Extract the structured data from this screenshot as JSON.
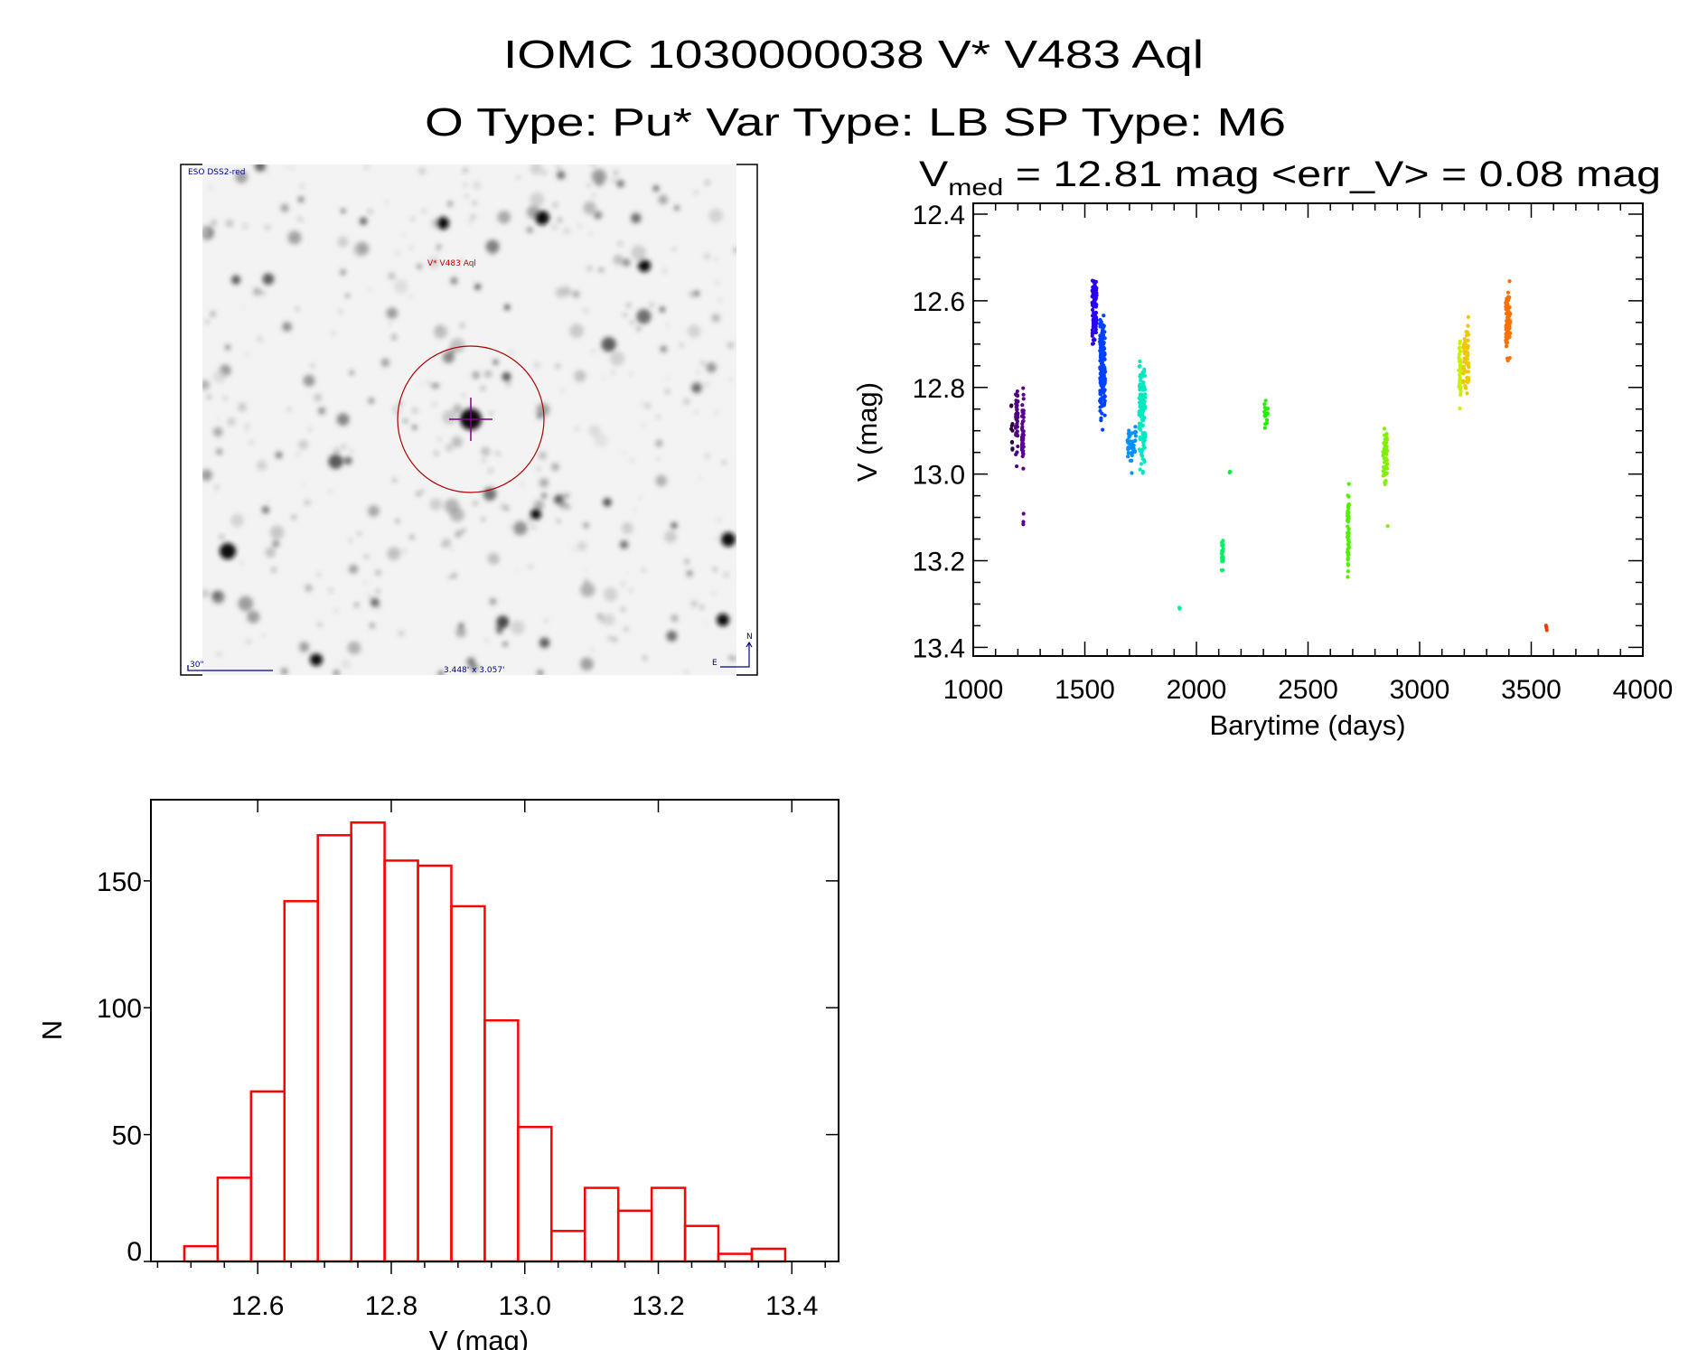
{
  "header": {
    "title": "IOMC 1030000038    V* V483 Aql",
    "subtitle": "O Type: Pu*   Var Type: LB   SP Type: M6"
  },
  "finder_image": {
    "survey_label": "ESO DSS2-red",
    "target_label": "V* V483 Aql",
    "scale_label": "30\"",
    "field_size_label": "3.448' x 3.057'",
    "north_label": "N",
    "east_label": "E",
    "label_color": "#00008b",
    "target_color": "#c00000"
  },
  "chart_data": [
    {
      "type": "scatter",
      "title_v": "V",
      "title_sub": "med",
      "title_rest": " = 12.81 mag <err_V> = 0.08 mag",
      "xlabel": "Barytime (days)",
      "ylabel": "V (mag)",
      "xlim": [
        1000,
        4000
      ],
      "ylim": [
        12.375,
        13.42
      ],
      "y_inverted": true,
      "xticks": [
        1000,
        1500,
        2000,
        2500,
        3000,
        3500,
        4000
      ],
      "xtick_labels": [
        "1000",
        "1500",
        "2000",
        "2500",
        "3000",
        "3500",
        "4000"
      ],
      "yticks": [
        12.4,
        12.6,
        12.8,
        13.0,
        13.2,
        13.4
      ],
      "ytick_labels": [
        "12.4",
        "12.6",
        "12.8",
        "13.0",
        "13.2",
        "13.4"
      ],
      "clusters": [
        {
          "t": [
            1170,
            1178
          ],
          "v": [
            12.8,
            12.97
          ],
          "n": 10,
          "color": "#300040"
        },
        {
          "t": [
            1190,
            1200
          ],
          "v": [
            12.74,
            13.0
          ],
          "n": 40,
          "color": "#500080"
        },
        {
          "t": [
            1218,
            1226
          ],
          "v": [
            12.75,
            13.02
          ],
          "n": 45,
          "color": "#580090"
        },
        {
          "t": [
            1223,
            1226
          ],
          "v": [
            13.08,
            13.13
          ],
          "n": 3,
          "color": "#580090"
        },
        {
          "t": [
            1533,
            1553
          ],
          "v": [
            12.49,
            12.73
          ],
          "n": 90,
          "color": "#2a00f0"
        },
        {
          "t": [
            1567,
            1591
          ],
          "v": [
            12.58,
            12.92
          ],
          "n": 180,
          "color": "#0040ff"
        },
        {
          "t": [
            1690,
            1729
          ],
          "v": [
            12.85,
            13.01
          ],
          "n": 40,
          "color": "#0090ff"
        },
        {
          "t": [
            1743,
            1771
          ],
          "v": [
            12.69,
            13.04
          ],
          "n": 120,
          "color": "#00e8c0"
        },
        {
          "t": [
            1922,
            1926
          ],
          "v": [
            13.305,
            13.315
          ],
          "n": 3,
          "color": "#00f0a0"
        },
        {
          "t": [
            2113,
            2120
          ],
          "v": [
            13.13,
            13.26
          ],
          "n": 25,
          "color": "#00f060"
        },
        {
          "t": [
            2148,
            2152
          ],
          "v": [
            12.99,
            13.0
          ],
          "n": 4,
          "color": "#00f040"
        },
        {
          "t": [
            2304,
            2320
          ],
          "v": [
            12.8,
            12.93
          ],
          "n": 15,
          "color": "#20f000"
        },
        {
          "t": [
            2676,
            2684
          ],
          "v": [
            12.98,
            13.28
          ],
          "n": 60,
          "color": "#50f000"
        },
        {
          "t": [
            2836,
            2856
          ],
          "v": [
            12.86,
            13.06
          ],
          "n": 50,
          "color": "#80f000"
        },
        {
          "t": [
            2855,
            2857
          ],
          "v": [
            13.12,
            13.12
          ],
          "n": 1,
          "color": "#80f000"
        },
        {
          "t": [
            3175,
            3185
          ],
          "v": [
            12.64,
            12.88
          ],
          "n": 40,
          "color": "#c8f000"
        },
        {
          "t": [
            3195,
            3222
          ],
          "v": [
            12.61,
            12.86
          ],
          "n": 60,
          "color": "#f0c800"
        },
        {
          "t": [
            3386,
            3406
          ],
          "v": [
            12.54,
            12.76
          ],
          "n": 80,
          "color": "#ff7000"
        },
        {
          "t": [
            3566,
            3570
          ],
          "v": [
            13.34,
            13.375
          ],
          "n": 4,
          "color": "#ff3800"
        }
      ]
    },
    {
      "type": "bar",
      "xlabel": "V (mag)",
      "ylabel": "N",
      "xlim": [
        12.44,
        13.47
      ],
      "ylim": [
        0,
        182
      ],
      "bin_start": 12.49,
      "bin_width": 0.05,
      "counts": [
        6,
        33,
        67,
        142,
        168,
        173,
        158,
        156,
        140,
        95,
        53,
        12,
        29,
        20,
        29,
        14,
        3,
        5
      ],
      "bar_color": "#ff0000",
      "xticks": [
        12.6,
        12.8,
        13.0,
        13.2,
        13.4
      ],
      "xtick_labels": [
        "12.6",
        "12.8",
        "13.0",
        "13.2",
        "13.4"
      ],
      "yticks": [
        0,
        50,
        100,
        150
      ],
      "ytick_labels": [
        "0",
        "50",
        "100",
        "150"
      ]
    }
  ]
}
